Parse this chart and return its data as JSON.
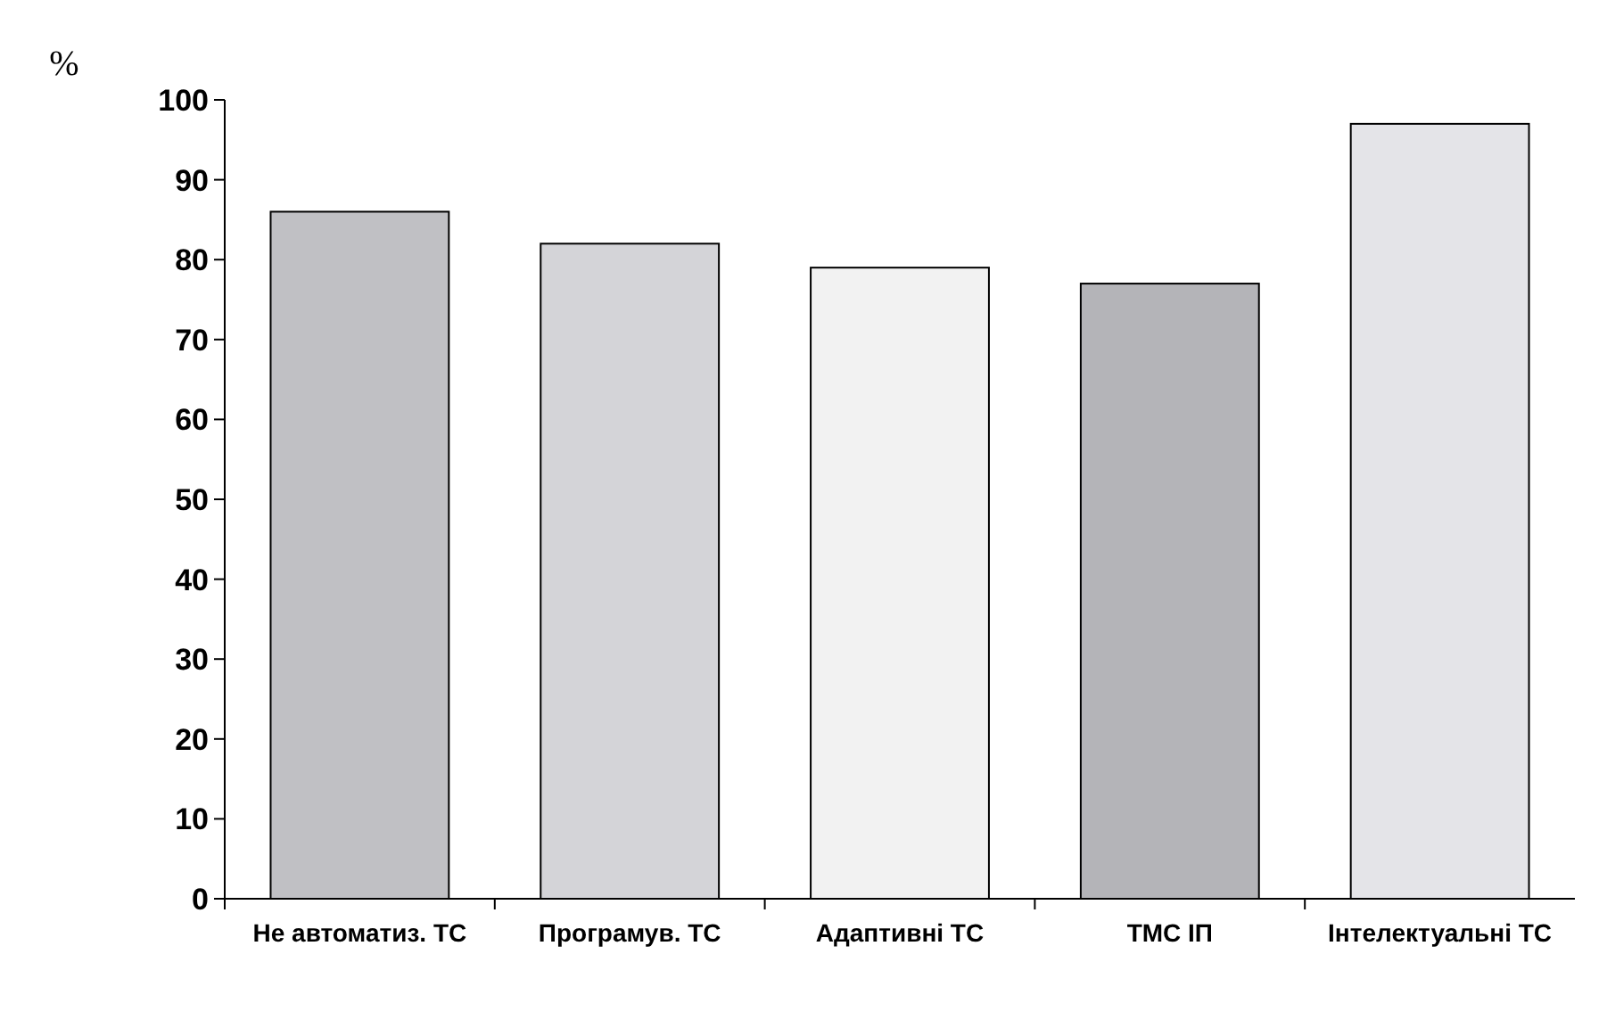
{
  "chart_data": {
    "type": "bar",
    "ylabel": "%",
    "categories": [
      "Не автоматиз. ТС",
      "Програмув. ТС",
      "Адаптивні ТС",
      "ТМС ІП",
      "Інтелектуальні ТС"
    ],
    "values": [
      86,
      82,
      79,
      77,
      97
    ],
    "colors": [
      "#c0c0c4",
      "#d4d4d8",
      "#f2f2f2",
      "#b4b4b8",
      "#e4e4e8"
    ],
    "ylim": [
      0,
      100
    ],
    "yticks": [
      0,
      10,
      20,
      30,
      40,
      50,
      60,
      70,
      80,
      90,
      100
    ],
    "grid": false
  }
}
